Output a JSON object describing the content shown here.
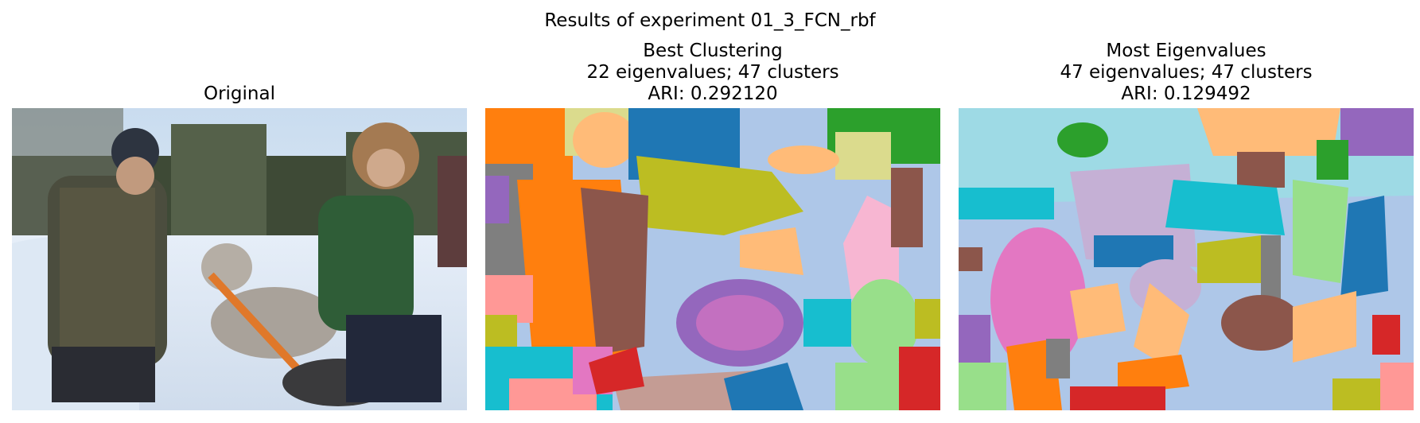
{
  "figure": {
    "suptitle": "Results of experiment 01_3_FCN_rbf",
    "panels": [
      {
        "title_lines": [
          "Original"
        ]
      },
      {
        "title_lines": [
          "Best Clustering",
          "22 eigenvalues; 47 clusters",
          "ARI: 0.292120"
        ]
      },
      {
        "title_lines": [
          "Most Eigenvalues",
          "47 eigenvalues; 47 clusters",
          "ARI: 0.129492"
        ]
      }
    ]
  },
  "colors": {
    "light_blue": "#aec7e8",
    "orange": "#ff7f0e",
    "blue": "#1f77b4",
    "green": "#2ca02c",
    "red": "#d62728",
    "purple": "#9467bd",
    "brown": "#8c564b",
    "pink": "#e377c2",
    "gray": "#7f7f7f",
    "olive": "#bcbd22",
    "cyan": "#17becf",
    "light_orange": "#ffbb78",
    "light_green": "#98df8a",
    "light_red": "#ff9896",
    "light_purple": "#c5b0d5",
    "light_brown": "#c49c94",
    "light_pink": "#f7b6d2",
    "light_olive": "#dbdb8d",
    "light_cyan": "#9edae5"
  }
}
